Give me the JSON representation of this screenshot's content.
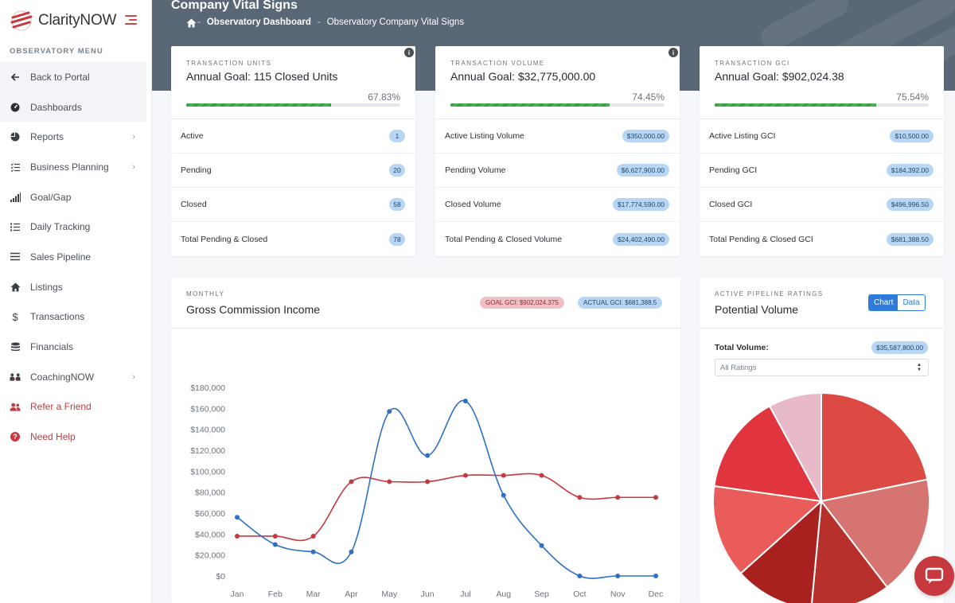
{
  "sidebar": {
    "brand": "ClarityNOW",
    "menu_title": "OBSERVATORY MENU",
    "items": [
      {
        "label": "Back to Portal",
        "icon": "arrow-left-icon"
      },
      {
        "label": "Dashboards",
        "icon": "dashboard-gauge-icon"
      },
      {
        "label": "Reports",
        "icon": "pie-chart-icon",
        "has_submenu": true
      },
      {
        "label": "Business Planning",
        "icon": "checklist-icon",
        "has_submenu": true
      },
      {
        "label": "Goal/Gap",
        "icon": "signal-bars-icon"
      },
      {
        "label": "Daily Tracking",
        "icon": "list-icon"
      },
      {
        "label": "Sales Pipeline",
        "icon": "lines-icon"
      },
      {
        "label": "Listings",
        "icon": "home-icon"
      },
      {
        "label": "Transactions",
        "icon": "dollar-icon"
      },
      {
        "label": "Financials",
        "icon": "coins-icon"
      },
      {
        "label": "CoachingNOW",
        "icon": "people-icon",
        "has_submenu": true
      },
      {
        "label": "Refer a Friend",
        "icon": "users-icon"
      },
      {
        "label": "Need Help",
        "icon": "question-circle-icon"
      }
    ]
  },
  "header": {
    "title": "Company Vital Signs",
    "breadcrumb": [
      "Observatory Dashboard",
      "Observatory Company Vital Signs"
    ]
  },
  "kpis": [
    {
      "eyebrow": "TRANSACTION UNITS",
      "title": "Annual Goal: 115 Closed Units",
      "percent": "67.83%",
      "progress": 0.6783,
      "rows": [
        {
          "label": "Active",
          "value": "1"
        },
        {
          "label": "Pending",
          "value": "20"
        },
        {
          "label": "Closed",
          "value": "58"
        },
        {
          "label": "Total Pending & Closed",
          "value": "78"
        }
      ]
    },
    {
      "eyebrow": "TRANSACTION VOLUME",
      "title": "Annual Goal: $32,775,000.00",
      "percent": "74.45%",
      "progress": 0.7445,
      "rows": [
        {
          "label": "Active Listing Volume",
          "value": "$350,000.00"
        },
        {
          "label": "Pending Volume",
          "value": "$6,627,900.00"
        },
        {
          "label": "Closed Volume",
          "value": "$17,774,590.00"
        },
        {
          "label": "Total Pending & Closed Volume",
          "value": "$24,402,490.00"
        }
      ]
    },
    {
      "eyebrow": "TRANSACTION GCI",
      "title": "Annual Goal: $902,024.38",
      "percent": "75.54%",
      "progress": 0.7554,
      "rows": [
        {
          "label": "Active Listing GCI",
          "value": "$10,500.00"
        },
        {
          "label": "Pending GCI",
          "value": "$184,392.00"
        },
        {
          "label": "Closed GCI",
          "value": "$496,996.50"
        },
        {
          "label": "Total Pending & Closed GCI",
          "value": "$681,388.50"
        }
      ]
    }
  ],
  "gci": {
    "eyebrow": "MONTHLY",
    "title": "Gross Commission Income",
    "goal_tag": "GOAL GCI: $902,024.375",
    "actual_tag": "ACTUAL GCI: $681,388.5"
  },
  "chart_data": {
    "type": "line",
    "title": "Gross Commission Income",
    "categories": [
      "Jan",
      "Feb",
      "Mar",
      "Apr",
      "May",
      "Jun",
      "Jul",
      "Aug",
      "Sep",
      "Oct",
      "Nov",
      "Dec"
    ],
    "y_ticks": [
      "$0",
      "$20,000",
      "$40,000",
      "$60,000",
      "$80,000",
      "$100,000",
      "$120,000",
      "$140,000",
      "$160,000",
      "$180,000"
    ],
    "ylim": [
      0,
      180000
    ],
    "series": [
      {
        "color": "#c7383f",
        "values": [
          38000,
          38000,
          38000,
          90000,
          90000,
          90000,
          96000,
          96000,
          96000,
          75000,
          75000,
          75000
        ]
      },
      {
        "color": "#2f6fc4",
        "values": [
          56000,
          30000,
          23000,
          23000,
          157000,
          115000,
          167000,
          77000,
          29000,
          0,
          0,
          0
        ]
      }
    ]
  },
  "pipeline": {
    "eyebrow": "ACTIVE PIPELINE RATINGS",
    "title": "Potential Volume",
    "toggle": [
      "Chart",
      "Data"
    ],
    "total_label": "Total Volume:",
    "total_value": "$35,587,800.00",
    "select_value": "All Ratings",
    "pie": {
      "type": "pie",
      "slices": [
        {
          "value": 22,
          "color": "#dc4a43"
        },
        {
          "value": 18,
          "color": "#d67471"
        },
        {
          "value": 12,
          "color": "#b8302c"
        },
        {
          "value": 12,
          "color": "#a9211f"
        },
        {
          "value": 14,
          "color": "#e95c5a"
        },
        {
          "value": 15,
          "color": "#e0343f"
        },
        {
          "value": 8,
          "color": "#e8b9c8"
        }
      ]
    }
  }
}
